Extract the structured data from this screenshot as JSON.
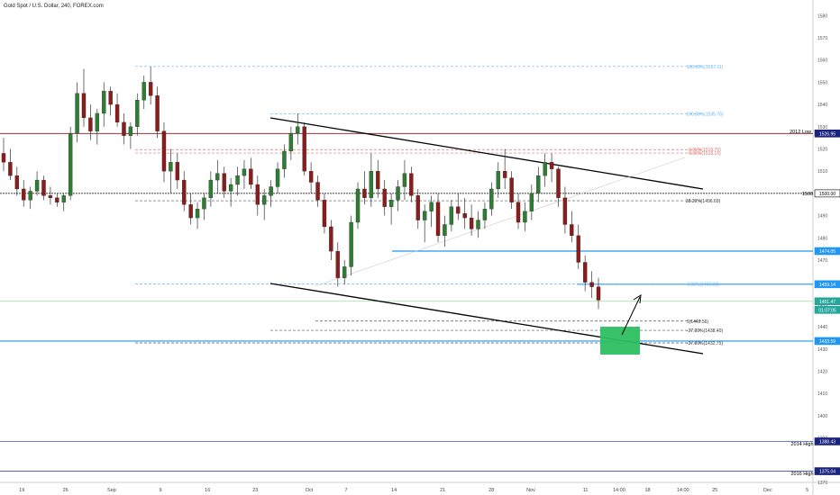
{
  "header": {
    "title": "Gold Spot / U.S. Dollar, 240, FOREX.com"
  },
  "chart_data": {
    "type": "candlestick",
    "y_ticks": [
      1580,
      1570,
      1560,
      1550,
      1540,
      1530,
      1520,
      1510,
      1490,
      1480,
      1470,
      1450,
      1440,
      1430,
      1420,
      1410,
      1400,
      1390,
      1370
    ],
    "ylim": [
      1370,
      1587
    ],
    "x_ticks": [
      {
        "label": "19",
        "x": 0.026
      },
      {
        "label": "26",
        "x": 0.078
      },
      {
        "label": "Sep",
        "x": 0.133
      },
      {
        "label": "9",
        "x": 0.191
      },
      {
        "label": "16",
        "x": 0.247
      },
      {
        "label": "23",
        "x": 0.304
      },
      {
        "label": "Oct",
        "x": 0.368
      },
      {
        "label": "7",
        "x": 0.412
      },
      {
        "label": "14",
        "x": 0.469
      },
      {
        "label": "21",
        "x": 0.527
      },
      {
        "label": "28",
        "x": 0.585
      },
      {
        "label": "Nov",
        "x": 0.632
      },
      {
        "label": "11",
        "x": 0.697
      },
      {
        "label": "14:00",
        "x": 0.737
      },
      {
        "label": "18",
        "x": 0.771
      },
      {
        "label": "14:00",
        "x": 0.813
      },
      {
        "label": "25",
        "x": 0.851
      },
      {
        "label": "Dec",
        "x": 0.914
      },
      {
        "label": "5",
        "x": 0.961
      }
    ],
    "price_labels": [
      {
        "text": "1526.95",
        "price": 1526.95,
        "bg": "#1a237e",
        "fg": "#ffffff"
      },
      {
        "text": "1500.00",
        "price": 1500.0,
        "bg": "#ffffff",
        "fg": "#000000",
        "border": "#000000"
      },
      {
        "text": "1474.05",
        "price": 1474.05,
        "bg": "#2196f3",
        "fg": "#ffffff"
      },
      {
        "text": "1459.14",
        "price": 1459.14,
        "bg": "#2196f3",
        "fg": "#ffffff"
      },
      {
        "text": "1451.47",
        "price": 1451.47,
        "bg": "#26a69a",
        "fg": "#ffffff"
      },
      {
        "text": "01:07:05",
        "price": 1447.6,
        "bg": "#26a69a",
        "fg": "#ffffff"
      },
      {
        "text": "1433.59",
        "price": 1433.59,
        "bg": "#2196f3",
        "fg": "#ffffff"
      },
      {
        "text": "1388.43",
        "price": 1388.43,
        "bg": "#1a237e",
        "fg": "#ffffff"
      },
      {
        "text": "1375.04",
        "price": 1375.04,
        "bg": "#1a237e",
        "fg": "#ffffff"
      }
    ],
    "horizontal_levels": [
      {
        "name": "2012 Low",
        "price": 1526.95,
        "color": "#8b1a1a"
      },
      {
        "name": "1500",
        "price": 1500.0,
        "color": "#000000"
      },
      {
        "name": "2014 High",
        "price": 1388.43,
        "color": "#3f51b5"
      },
      {
        "name": "2016 High",
        "price": 1375.04,
        "color": "#3f51b5"
      }
    ],
    "fib_labels": [
      {
        "text": "100.00%(1557.11)",
        "price": 1557.11
      },
      {
        "text": "100.00%(1535.76)",
        "price": 1535.76
      },
      {
        "text": "0.00%(1519.70)",
        "price": 1519.7
      },
      {
        "text": "0.00%(1518.15)",
        "price": 1518.15
      },
      {
        "text": "38.20%(1496.69)",
        "price": 1496.69
      },
      {
        "text": "0.00%(1459.23)",
        "price": 1459.23
      },
      {
        "text": "1(1442.56)",
        "price": 1442.56
      },
      {
        "text": "-27.20%(1438.40)",
        "price": 1438.4
      },
      {
        "text": "-27.20%(1432.75)",
        "price": 1432.75
      }
    ],
    "series": [
      {
        "values": [
          [
            1518,
            1525,
            1510,
            1514
          ],
          [
            1514,
            1520,
            1506,
            1508
          ],
          [
            1508,
            1512,
            1499,
            1502
          ],
          [
            1502,
            1506,
            1494,
            1497
          ],
          [
            1497,
            1503,
            1493,
            1501
          ],
          [
            1501,
            1510,
            1499,
            1506
          ],
          [
            1506,
            1508,
            1497,
            1499
          ],
          [
            1499,
            1503,
            1495,
            1498
          ],
          [
            1498,
            1500,
            1494,
            1496
          ],
          [
            1496,
            1500,
            1492,
            1499
          ],
          [
            1499,
            1530,
            1497,
            1527
          ],
          [
            1527,
            1550,
            1523,
            1545
          ],
          [
            1545,
            1556,
            1530,
            1534
          ],
          [
            1534,
            1540,
            1524,
            1528
          ],
          [
            1528,
            1538,
            1522,
            1536
          ],
          [
            1536,
            1550,
            1530,
            1546
          ],
          [
            1546,
            1548,
            1535,
            1540
          ],
          [
            1540,
            1545,
            1530,
            1532
          ],
          [
            1532,
            1536,
            1522,
            1526
          ],
          [
            1526,
            1532,
            1520,
            1530
          ],
          [
            1530,
            1545,
            1526,
            1542
          ],
          [
            1542,
            1553,
            1538,
            1550
          ],
          [
            1550,
            1557,
            1540,
            1544
          ],
          [
            1544,
            1548,
            1525,
            1528
          ],
          [
            1528,
            1532,
            1505,
            1510
          ],
          [
            1510,
            1520,
            1500,
            1514
          ],
          [
            1514,
            1518,
            1502,
            1506
          ],
          [
            1506,
            1510,
            1492,
            1495
          ],
          [
            1495,
            1500,
            1486,
            1489
          ],
          [
            1489,
            1496,
            1484,
            1493
          ],
          [
            1493,
            1500,
            1488,
            1498
          ],
          [
            1498,
            1510,
            1494,
            1506
          ],
          [
            1506,
            1515,
            1500,
            1509
          ],
          [
            1509,
            1512,
            1498,
            1501
          ],
          [
            1501,
            1507,
            1494,
            1504
          ],
          [
            1504,
            1512,
            1499,
            1508
          ],
          [
            1508,
            1515,
            1502,
            1511
          ],
          [
            1511,
            1516,
            1502,
            1504
          ],
          [
            1504,
            1508,
            1490,
            1495
          ],
          [
            1495,
            1502,
            1488,
            1499
          ],
          [
            1499,
            1506,
            1494,
            1503
          ],
          [
            1503,
            1514,
            1500,
            1511
          ],
          [
            1511,
            1522,
            1507,
            1519
          ],
          [
            1519,
            1530,
            1515,
            1527
          ],
          [
            1527,
            1536,
            1522,
            1530
          ],
          [
            1530,
            1532,
            1508,
            1510
          ],
          [
            1510,
            1514,
            1500,
            1505
          ],
          [
            1505,
            1508,
            1494,
            1497
          ],
          [
            1497,
            1500,
            1482,
            1485
          ],
          [
            1485,
            1488,
            1470,
            1474
          ],
          [
            1474,
            1478,
            1458,
            1462
          ],
          [
            1462,
            1470,
            1459,
            1467
          ],
          [
            1467,
            1490,
            1463,
            1487
          ],
          [
            1487,
            1505,
            1484,
            1502
          ],
          [
            1502,
            1510,
            1495,
            1498
          ],
          [
            1498,
            1518,
            1494,
            1510
          ],
          [
            1510,
            1515,
            1498,
            1502
          ],
          [
            1502,
            1506,
            1490,
            1494
          ],
          [
            1494,
            1500,
            1486,
            1497
          ],
          [
            1497,
            1506,
            1492,
            1503
          ],
          [
            1503,
            1515,
            1497,
            1509
          ],
          [
            1509,
            1512,
            1496,
            1499
          ],
          [
            1499,
            1502,
            1484,
            1488
          ],
          [
            1488,
            1495,
            1478,
            1492
          ],
          [
            1492,
            1499,
            1485,
            1496
          ],
          [
            1496,
            1500,
            1478,
            1481
          ],
          [
            1481,
            1490,
            1476,
            1486
          ],
          [
            1486,
            1497,
            1483,
            1494
          ],
          [
            1494,
            1500,
            1488,
            1491
          ],
          [
            1491,
            1498,
            1484,
            1489
          ],
          [
            1489,
            1495,
            1481,
            1484
          ],
          [
            1484,
            1492,
            1480,
            1488
          ],
          [
            1488,
            1496,
            1484,
            1493
          ],
          [
            1493,
            1505,
            1490,
            1502
          ],
          [
            1502,
            1514,
            1498,
            1510
          ],
          [
            1510,
            1520,
            1502,
            1507
          ],
          [
            1507,
            1510,
            1493,
            1496
          ],
          [
            1496,
            1500,
            1484,
            1487
          ],
          [
            1487,
            1496,
            1483,
            1492
          ],
          [
            1492,
            1504,
            1488,
            1500
          ],
          [
            1500,
            1512,
            1496,
            1508
          ],
          [
            1508,
            1518,
            1503,
            1514
          ],
          [
            1514,
            1518,
            1505,
            1511
          ],
          [
            1511,
            1512,
            1494,
            1498
          ],
          [
            1498,
            1503,
            1482,
            1486
          ],
          [
            1486,
            1492,
            1478,
            1481
          ],
          [
            1481,
            1486,
            1466,
            1469
          ],
          [
            1469,
            1472,
            1456,
            1460
          ],
          [
            1460,
            1465,
            1453,
            1458
          ],
          [
            1458,
            1462,
            1448,
            1452
          ]
        ]
      }
    ],
    "title": "Gold Spot / U.S. Dollar, 240, FOREX.com"
  }
}
